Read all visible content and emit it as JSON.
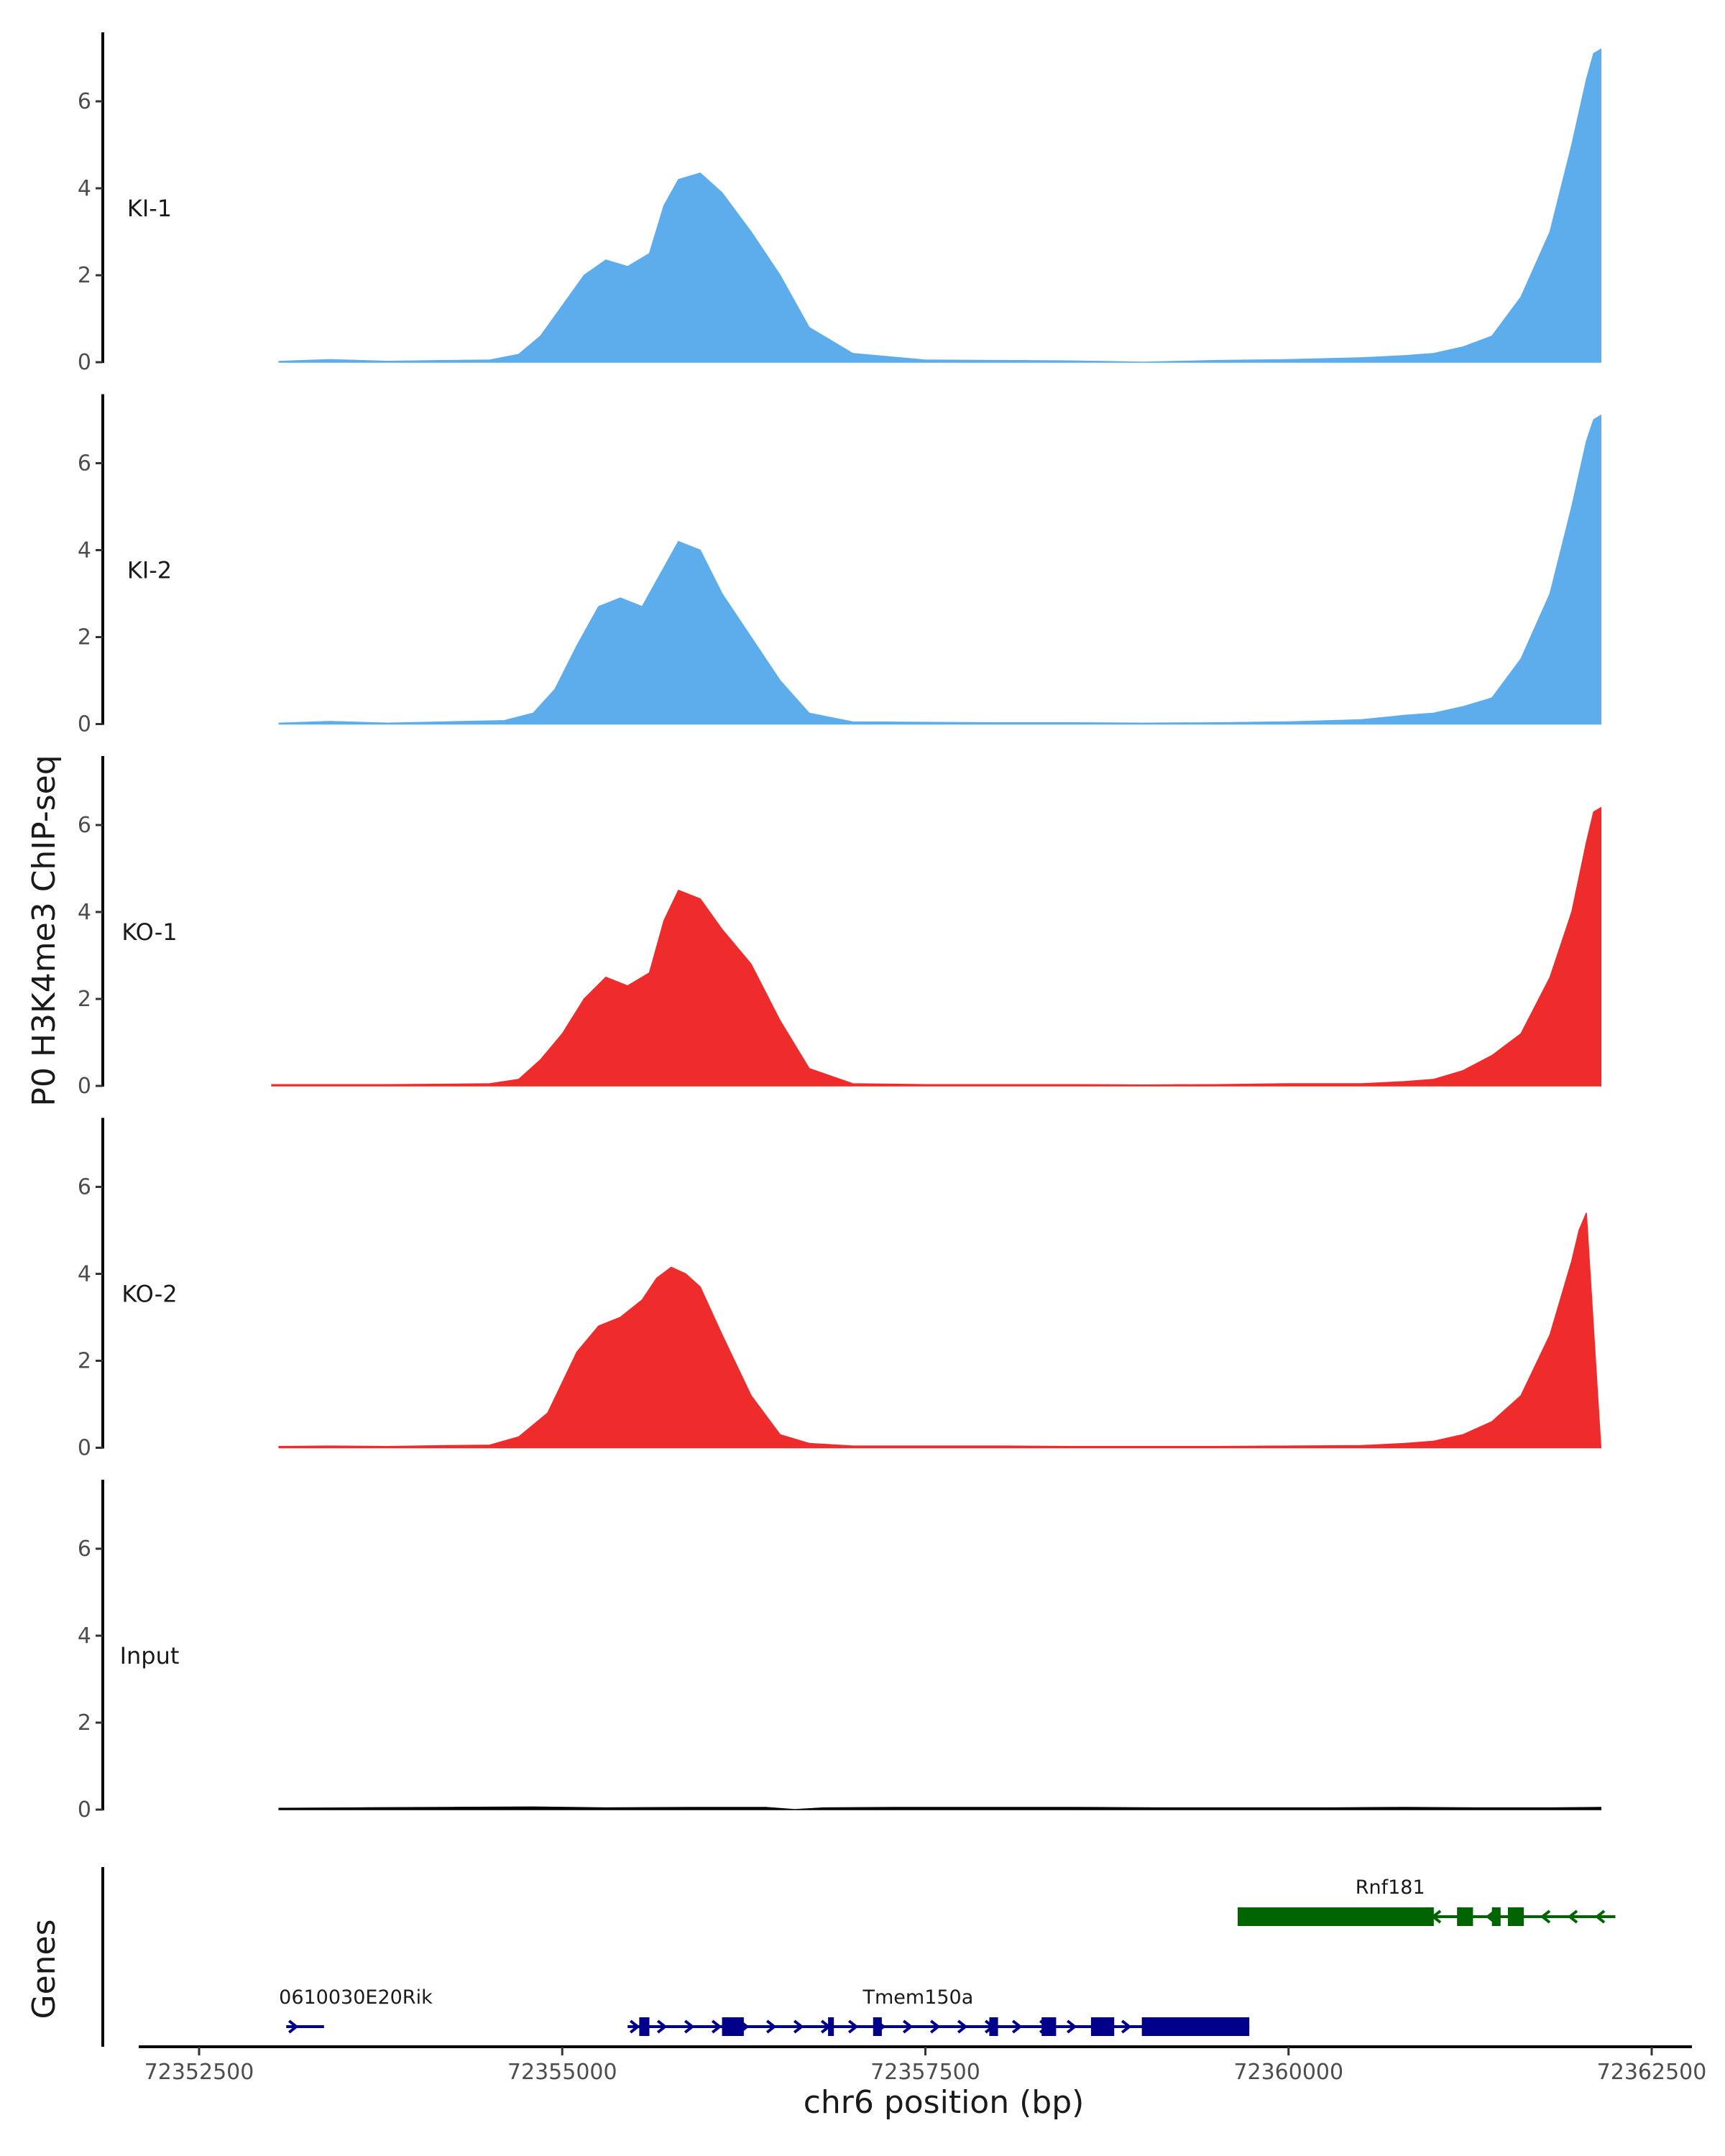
{
  "chart_data": {
    "type": "area",
    "ylabel": "P0 H3K4me3 ChIP-seq",
    "xlabel": "chr6 position (bp)",
    "genes_label": "Genes",
    "ylim": [
      0,
      7.5
    ],
    "yticks": [
      0,
      2,
      4,
      6
    ],
    "xlim": [
      72352500,
      72362500
    ],
    "xticks": [
      72352500,
      72355000,
      72357500,
      72360000,
      72362500
    ],
    "grid": false,
    "tracks": [
      {
        "name": "KI-1",
        "color": "#5DADEC",
        "x": [
          72353050,
          72353400,
          72353800,
          72354200,
          72354500,
          72354700,
          72354850,
          72355000,
          72355150,
          72355300,
          72355450,
          72355600,
          72355700,
          72355800,
          72355950,
          72356100,
          72356300,
          72356500,
          72356700,
          72357000,
          72357500,
          72358000,
          72358500,
          72359000,
          72359500,
          72360000,
          72360500,
          72360800,
          72361000,
          72361200,
          72361400,
          72361600,
          72361800,
          72361950,
          72362050,
          72362100,
          72362150
        ],
        "y": [
          0.02,
          0.06,
          0.02,
          0.04,
          0.05,
          0.18,
          0.6,
          1.3,
          2.0,
          2.35,
          2.2,
          2.5,
          3.6,
          4.2,
          4.35,
          3.9,
          3.0,
          2.0,
          0.8,
          0.2,
          0.05,
          0.04,
          0.03,
          0.0,
          0.04,
          0.06,
          0.1,
          0.15,
          0.2,
          0.35,
          0.6,
          1.5,
          3.0,
          5.0,
          6.5,
          7.1,
          7.2
        ]
      },
      {
        "name": "KI-2",
        "color": "#5DADEC",
        "x": [
          72353050,
          72353400,
          72353800,
          72354200,
          72354600,
          72354800,
          72354950,
          72355100,
          72355250,
          72355400,
          72355550,
          72355700,
          72355800,
          72355950,
          72356100,
          72356300,
          72356500,
          72356700,
          72357000,
          72357500,
          72358000,
          72358500,
          72359000,
          72359500,
          72360000,
          72360500,
          72360800,
          72361000,
          72361200,
          72361400,
          72361600,
          72361800,
          72361950,
          72362050,
          72362100,
          72362150
        ],
        "y": [
          0.02,
          0.06,
          0.02,
          0.05,
          0.08,
          0.25,
          0.8,
          1.8,
          2.7,
          2.9,
          2.7,
          3.6,
          4.2,
          4.0,
          3.0,
          2.0,
          1.0,
          0.25,
          0.05,
          0.04,
          0.03,
          0.03,
          0.02,
          0.03,
          0.05,
          0.1,
          0.2,
          0.25,
          0.4,
          0.6,
          1.5,
          3.0,
          5.0,
          6.5,
          7.0,
          7.1
        ]
      },
      {
        "name": "KO-1",
        "color": "#EE2C2C",
        "x": [
          72353000,
          72353400,
          72353800,
          72354200,
          72354500,
          72354700,
          72354850,
          72355000,
          72355150,
          72355300,
          72355450,
          72355600,
          72355700,
          72355800,
          72355950,
          72356100,
          72356300,
          72356500,
          72356700,
          72357000,
          72357500,
          72358000,
          72358500,
          72359000,
          72359500,
          72360000,
          72360500,
          72360800,
          72361000,
          72361200,
          72361400,
          72361600,
          72361800,
          72361950,
          72362050,
          72362100,
          72362150
        ],
        "y": [
          0.03,
          0.03,
          0.03,
          0.04,
          0.05,
          0.15,
          0.6,
          1.2,
          2.0,
          2.5,
          2.3,
          2.6,
          3.8,
          4.5,
          4.3,
          3.6,
          2.8,
          1.5,
          0.4,
          0.05,
          0.03,
          0.03,
          0.03,
          0.02,
          0.03,
          0.05,
          0.05,
          0.1,
          0.15,
          0.35,
          0.7,
          1.2,
          2.5,
          4.0,
          5.6,
          6.3,
          6.4
        ]
      },
      {
        "name": "KO-2",
        "color": "#EE2C2C",
        "x": [
          72353050,
          72353400,
          72353800,
          72354200,
          72354500,
          72354700,
          72354900,
          72355100,
          72355250,
          72355400,
          72355550,
          72355650,
          72355750,
          72355850,
          72355950,
          72356100,
          72356300,
          72356500,
          72356700,
          72357000,
          72357500,
          72358000,
          72358500,
          72359000,
          72359500,
          72360000,
          72360500,
          72360800,
          72361000,
          72361200,
          72361400,
          72361600,
          72361800,
          72361950,
          72362000,
          72362050,
          72362150
        ],
        "y": [
          0.03,
          0.04,
          0.03,
          0.05,
          0.06,
          0.25,
          0.8,
          2.2,
          2.8,
          3.0,
          3.4,
          3.9,
          4.15,
          4.0,
          3.7,
          2.6,
          1.2,
          0.3,
          0.1,
          0.04,
          0.04,
          0.04,
          0.03,
          0.03,
          0.03,
          0.04,
          0.05,
          0.1,
          0.15,
          0.3,
          0.6,
          1.2,
          2.6,
          4.3,
          5.0,
          5.4,
          0.0
        ]
      },
      {
        "name": "Input",
        "color": "#000000",
        "x": [
          72353050,
          72353600,
          72354200,
          72354800,
          72355300,
          72355900,
          72356400,
          72356600,
          72356800,
          72357300,
          72357900,
          72358500,
          72359100,
          72359700,
          72360300,
          72360800,
          72361300,
          72361800,
          72362150
        ],
        "y": [
          0.03,
          0.04,
          0.05,
          0.06,
          0.04,
          0.05,
          0.05,
          0.0,
          0.04,
          0.05,
          0.05,
          0.05,
          0.04,
          0.04,
          0.04,
          0.05,
          0.04,
          0.04,
          0.05
        ]
      }
    ],
    "genes": [
      {
        "name": "0610030E20Rik",
        "strand": "+",
        "color": "#00008B",
        "row": 2,
        "start": 72353100,
        "end": 72353360,
        "exons": [],
        "label_x": 72353050
      },
      {
        "name": "Tmem150a",
        "strand": "+",
        "color": "#00008B",
        "row": 2,
        "start": 72355450,
        "end": 72359730,
        "exons": [
          [
            72355530,
            72355600
          ],
          [
            72356100,
            72356250
          ],
          [
            72356830,
            72356870
          ],
          [
            72357140,
            72357200
          ],
          [
            72357940,
            72358000
          ],
          [
            72358300,
            72358400
          ],
          [
            72358640,
            72358800
          ],
          [
            72358990,
            72359730
          ]
        ],
        "label_x": 72357450
      },
      {
        "name": "Rnf181",
        "strand": "-",
        "color": "#006400",
        "row": 1,
        "start": 72359650,
        "end": 72362250,
        "exons": [
          [
            72359650,
            72361000
          ],
          [
            72361160,
            72361270
          ],
          [
            72361400,
            72361460
          ],
          [
            72361510,
            72361620
          ]
        ],
        "label_x": 72360700
      }
    ]
  }
}
